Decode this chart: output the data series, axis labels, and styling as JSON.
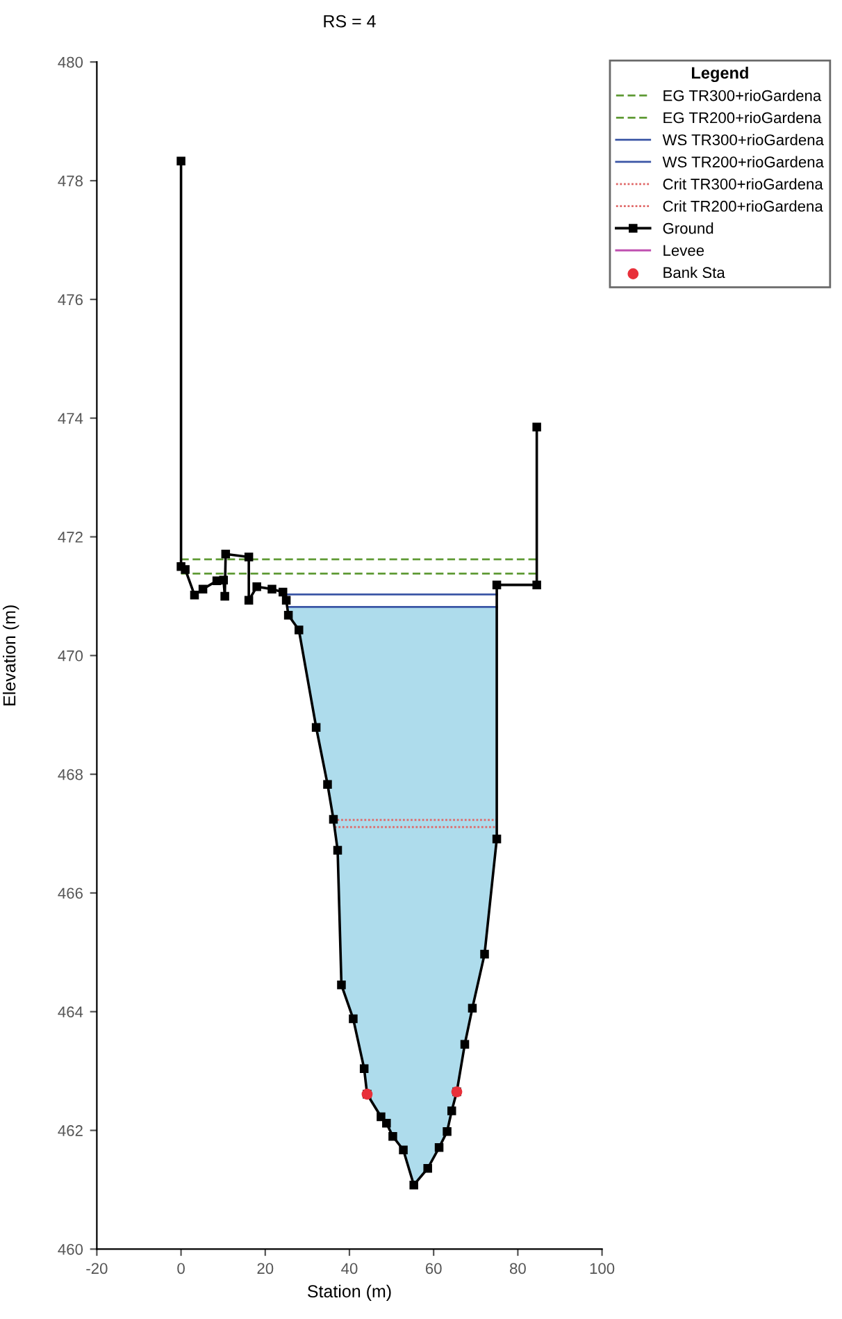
{
  "chart_data": {
    "type": "line",
    "title": "RS = 4",
    "xlabel": "Station (m)",
    "ylabel": "Elevation (m)",
    "legend_title": "Legend",
    "legend": "top right",
    "xlim": [
      -20,
      100
    ],
    "xticks": [
      -20,
      0,
      20,
      40,
      60,
      80,
      100
    ],
    "ylim": [
      460,
      480
    ],
    "yticks": [
      460,
      462,
      464,
      466,
      468,
      470,
      472,
      474,
      476,
      478,
      480
    ],
    "grid": false,
    "series": [
      {
        "name": "EG TR300+rioGardena",
        "color": "#5f9a35",
        "line_style": "dashed",
        "x": [
          0,
          85
        ],
        "values": [
          471.62,
          471.62
        ]
      },
      {
        "name": "EG TR200+rioGardena",
        "color": "#5f9a35",
        "line_style": "dashed",
        "x": [
          0,
          85
        ],
        "values": [
          471.38,
          471.38
        ]
      },
      {
        "name": "WS TR300+rioGardena",
        "color": "#3a55a5",
        "line_style": "solid",
        "x": [
          24.2,
          75
        ],
        "values": [
          471.03,
          471.03
        ]
      },
      {
        "name": "WS TR200+rioGardena",
        "color": "#3a55a5",
        "line_style": "solid",
        "x": [
          25.5,
          28,
          32.1,
          34.8,
          36.2,
          37.2,
          38.1,
          40.9,
          43.5,
          44.2,
          47.5,
          48.8,
          50.3,
          52.8,
          55.3,
          58.6,
          61.3,
          63.2,
          64.3,
          65.5,
          67.4,
          69.2,
          72.1,
          75,
          75
        ],
        "values": [
          470.82,
          470.82,
          470.82,
          470.82,
          470.82,
          470.82,
          470.82,
          470.82,
          470.82,
          470.82,
          470.82,
          470.82,
          470.82,
          470.82,
          470.82,
          470.82,
          470.82,
          470.82,
          470.82,
          470.82,
          470.82,
          470.82,
          470.82,
          470.82,
          470.82
        ],
        "lower": [
          470.68,
          470.43,
          468.79,
          467.83,
          467.24,
          466.72,
          464.45,
          463.88,
          463.04,
          462.61,
          462.23,
          462.12,
          461.9,
          461.67,
          461.08,
          461.36,
          461.71,
          461.98,
          462.33,
          462.65,
          463.45,
          464.06,
          464.97,
          466.91,
          470.82
        ],
        "upper": [
          470.82,
          470.82,
          470.82,
          470.82,
          470.82,
          470.82,
          470.82,
          470.82,
          470.82,
          470.82,
          470.82,
          470.82,
          470.82,
          470.82,
          470.82,
          470.82,
          470.82,
          470.82,
          470.82,
          470.82,
          470.82,
          470.82,
          470.82,
          470.82,
          470.82
        ]
      },
      {
        "name": "Crit TR300+rioGardena",
        "color": "#e06868",
        "line_style": "dotted",
        "x": [
          36.2,
          75
        ],
        "values": [
          467.23,
          467.23
        ]
      },
      {
        "name": "Crit TR200+rioGardena",
        "color": "#e06868",
        "line_style": "dotted",
        "x": [
          36.5,
          75
        ],
        "values": [
          467.11,
          467.11
        ]
      },
      {
        "name": "Ground",
        "color": "#000000",
        "line_style": "solid",
        "marker": "square",
        "x": [
          0,
          0,
          1,
          3.2,
          5.2,
          8.5,
          10.1,
          10.4,
          10.6,
          16.1,
          16.1,
          18,
          21.6,
          24.2,
          25,
          25.5,
          28,
          32.1,
          34.8,
          36.2,
          37.2,
          38.1,
          40.9,
          43.5,
          44.2,
          47.5,
          48.8,
          50.3,
          52.8,
          55.3,
          58.6,
          61.3,
          63.2,
          64.3,
          65.5,
          67.4,
          69.2,
          72.1,
          75,
          75,
          84.5,
          84.5
        ],
        "values": [
          478.33,
          471.5,
          471.45,
          471.02,
          471.12,
          471.26,
          471.27,
          471.0,
          471.71,
          471.66,
          470.93,
          471.16,
          471.12,
          471.07,
          470.93,
          470.68,
          470.43,
          468.79,
          467.83,
          467.24,
          466.72,
          464.45,
          463.88,
          463.04,
          462.61,
          462.23,
          462.12,
          461.9,
          461.67,
          461.08,
          461.36,
          461.71,
          461.98,
          462.33,
          462.65,
          463.45,
          464.06,
          464.97,
          466.91,
          471.19,
          471.19,
          473.85
        ]
      },
      {
        "name": "Levee",
        "color": "#c050b0",
        "line_style": "solid"
      },
      {
        "name": "Bank Sta",
        "type": "scatter",
        "color": "#e8303a",
        "marker": "circle",
        "x": [
          44.2,
          65.5
        ],
        "values": [
          462.61,
          462.65
        ]
      }
    ]
  }
}
